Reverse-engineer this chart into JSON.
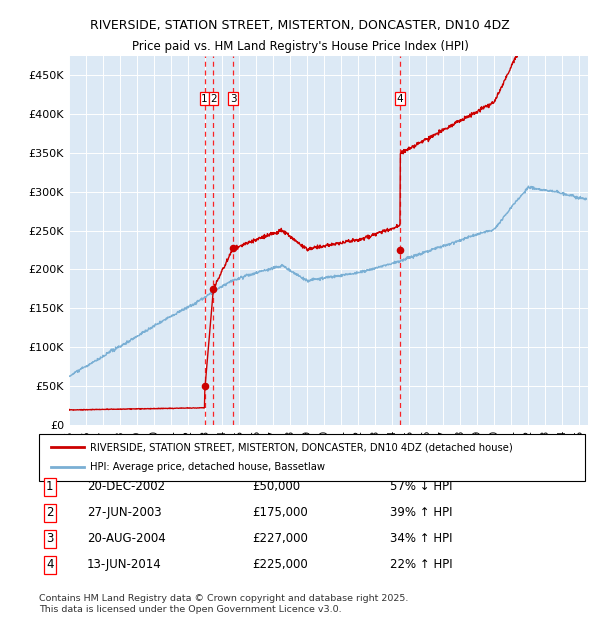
{
  "title": "RIVERSIDE, STATION STREET, MISTERTON, DONCASTER, DN10 4DZ",
  "subtitle": "Price paid vs. HM Land Registry's House Price Index (HPI)",
  "ylim": [
    0,
    475000
  ],
  "yticks": [
    0,
    50000,
    100000,
    150000,
    200000,
    250000,
    300000,
    350000,
    400000,
    450000
  ],
  "ytick_labels": [
    "£0",
    "£50K",
    "£100K",
    "£150K",
    "£200K",
    "£250K",
    "£300K",
    "£350K",
    "£400K",
    "£450K"
  ],
  "xlim_start": 1995.0,
  "xlim_end": 2025.5,
  "plot_bg_color": "#dce9f5",
  "grid_color": "#ffffff",
  "sale_color": "#cc0000",
  "hpi_color": "#7aafd4",
  "sale_label": "RIVERSIDE, STATION STREET, MISTERTON, DONCASTER, DN10 4DZ (detached house)",
  "hpi_label": "HPI: Average price, detached house, Bassetlaw",
  "transactions": [
    {
      "num": 1,
      "date": "20-DEC-2002",
      "price": 50000,
      "pct": "57%",
      "dir": "↓",
      "x": 2002.97
    },
    {
      "num": 2,
      "date": "27-JUN-2003",
      "price": 175000,
      "pct": "39%",
      "dir": "↑",
      "x": 2003.49
    },
    {
      "num": 3,
      "date": "20-AUG-2004",
      "price": 227000,
      "pct": "34%",
      "dir": "↑",
      "x": 2004.64
    },
    {
      "num": 4,
      "date": "13-JUN-2014",
      "price": 225000,
      "pct": "22%",
      "dir": "↑",
      "x": 2014.45
    }
  ],
  "table_rows": [
    [
      "1",
      "20-DEC-2002",
      "£50,000",
      "57% ↓ HPI"
    ],
    [
      "2",
      "27-JUN-2003",
      "£175,000",
      "39% ↑ HPI"
    ],
    [
      "3",
      "20-AUG-2004",
      "£227,000",
      "34% ↑ HPI"
    ],
    [
      "4",
      "13-JUN-2014",
      "£225,000",
      "22% ↑ HPI"
    ]
  ],
  "footer": "Contains HM Land Registry data © Crown copyright and database right 2025.\nThis data is licensed under the Open Government Licence v3.0."
}
